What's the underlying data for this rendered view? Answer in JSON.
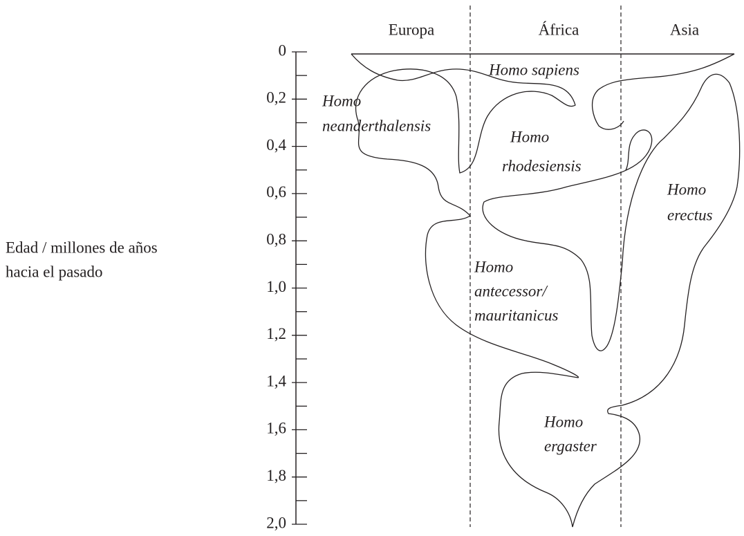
{
  "regions": [
    "Europa",
    "África",
    "Asia"
  ],
  "axis": {
    "label": [
      "Edad / millones de años",
      "hacia el pasado"
    ],
    "ticks": [
      "0",
      "0,2",
      "0,4",
      "0,6",
      "0,8",
      "1,0",
      "1,2",
      "1,4",
      "1,6",
      "1,8",
      "2,0"
    ]
  },
  "species": [
    {
      "lines": [
        "Homo sapiens"
      ]
    },
    {
      "lines": [
        "Homo",
        "neanderthalensis"
      ]
    },
    {
      "lines": [
        "Homo",
        "rhodesiensis"
      ]
    },
    {
      "lines": [
        "Homo",
        "erectus"
      ]
    },
    {
      "lines": [
        "Homo",
        "antecessor/",
        "mauritanicus"
      ]
    },
    {
      "lines": [
        "Homo",
        "ergaster"
      ]
    }
  ]
}
